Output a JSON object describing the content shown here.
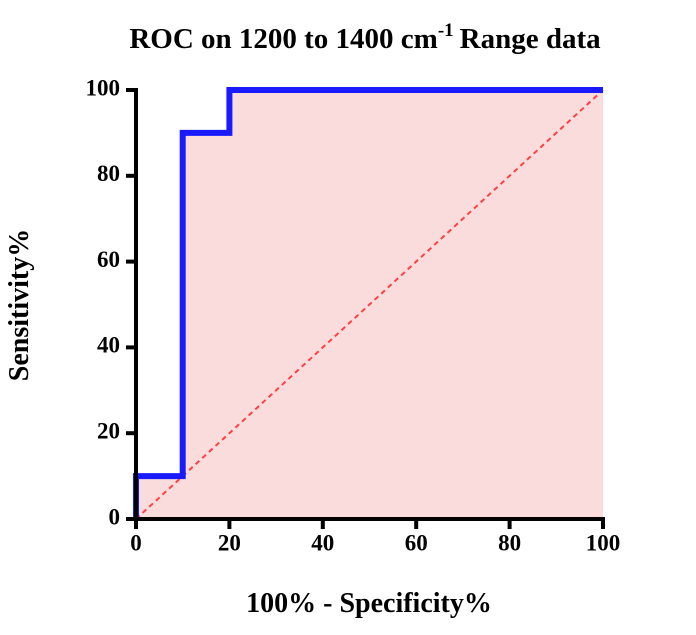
{
  "chart_data": {
    "type": "line",
    "title": {
      "text": "ROC on 1200 to 1400 cm",
      "superscript": "-1",
      "suffix": "Range data"
    },
    "x_label": "100% - Specificity%",
    "y_label": "Sensitivity%",
    "xlim": [
      0,
      100
    ],
    "xticks": [
      0,
      20,
      40,
      60,
      80,
      100
    ],
    "ylim": [
      0,
      100
    ],
    "yticks": [
      0,
      20,
      40,
      60,
      80,
      100
    ],
    "series": [
      {
        "color": "#1a1aff",
        "fill": "#fbdcdc",
        "x": [
          0,
          0,
          10,
          10,
          20,
          20,
          100
        ],
        "values": [
          0,
          10,
          10,
          90,
          90,
          100,
          100
        ]
      },
      {
        "color": "#ff4040",
        "dashed": true,
        "x": [
          0,
          100
        ],
        "values": [
          0,
          100
        ]
      }
    ]
  }
}
